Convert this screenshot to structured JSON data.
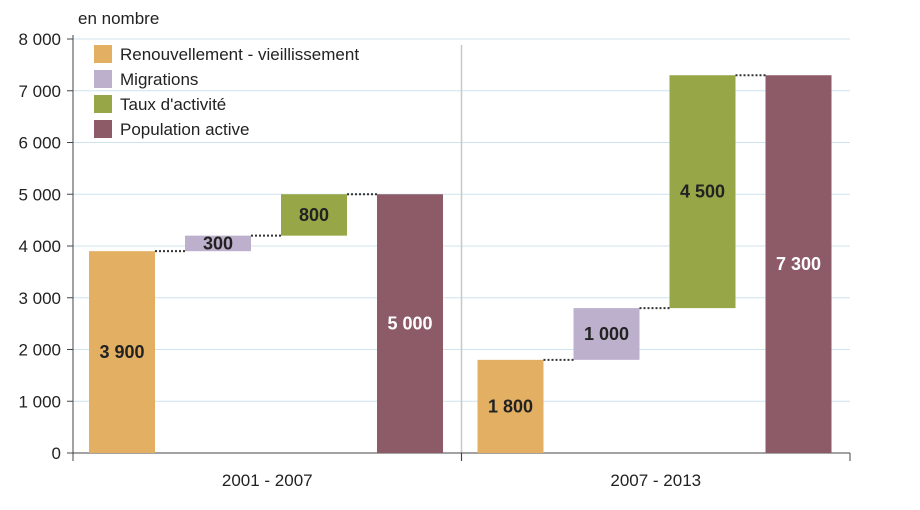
{
  "chart_data": {
    "type": "bar",
    "subtype": "waterfall",
    "unit_label": "en nombre",
    "ylim": [
      0,
      8000
    ],
    "yticks": [
      {
        "value": 0,
        "label": "0"
      },
      {
        "value": 1000,
        "label": "1 000"
      },
      {
        "value": 2000,
        "label": "2 000"
      },
      {
        "value": 3000,
        "label": "3 000"
      },
      {
        "value": 4000,
        "label": "4 000"
      },
      {
        "value": 5000,
        "label": "5 000"
      },
      {
        "value": 6000,
        "label": "6 000"
      },
      {
        "value": 7000,
        "label": "7 000"
      },
      {
        "value": 8000,
        "label": "8 000"
      }
    ],
    "grid": true,
    "legend_position": "top-left",
    "series": [
      {
        "name": "Renouvellement - vieillissement",
        "color": "#e3b063"
      },
      {
        "name": "Migrations",
        "color": "#bcb0cc"
      },
      {
        "name": "Taux d'activité",
        "color": "#97a646"
      },
      {
        "name": "Population active",
        "color": "#8c5b67"
      }
    ],
    "groups": [
      {
        "label": "2001 - 2007",
        "bars": [
          {
            "series": 0,
            "start": 0,
            "end": 3900,
            "label": "3 900"
          },
          {
            "series": 1,
            "start": 3900,
            "end": 4200,
            "label": "300"
          },
          {
            "series": 2,
            "start": 4200,
            "end": 5000,
            "label": "800"
          },
          {
            "series": 3,
            "start": 0,
            "end": 5000,
            "label": "5 000"
          }
        ]
      },
      {
        "label": "2007 - 2013",
        "bars": [
          {
            "series": 0,
            "start": 0,
            "end": 1800,
            "label": "1 800"
          },
          {
            "series": 1,
            "start": 1800,
            "end": 2800,
            "label": "1 000"
          },
          {
            "series": 2,
            "start": 2800,
            "end": 7300,
            "label": "4 500"
          },
          {
            "series": 3,
            "start": 0,
            "end": 7300,
            "label": "7 300"
          }
        ]
      }
    ]
  }
}
